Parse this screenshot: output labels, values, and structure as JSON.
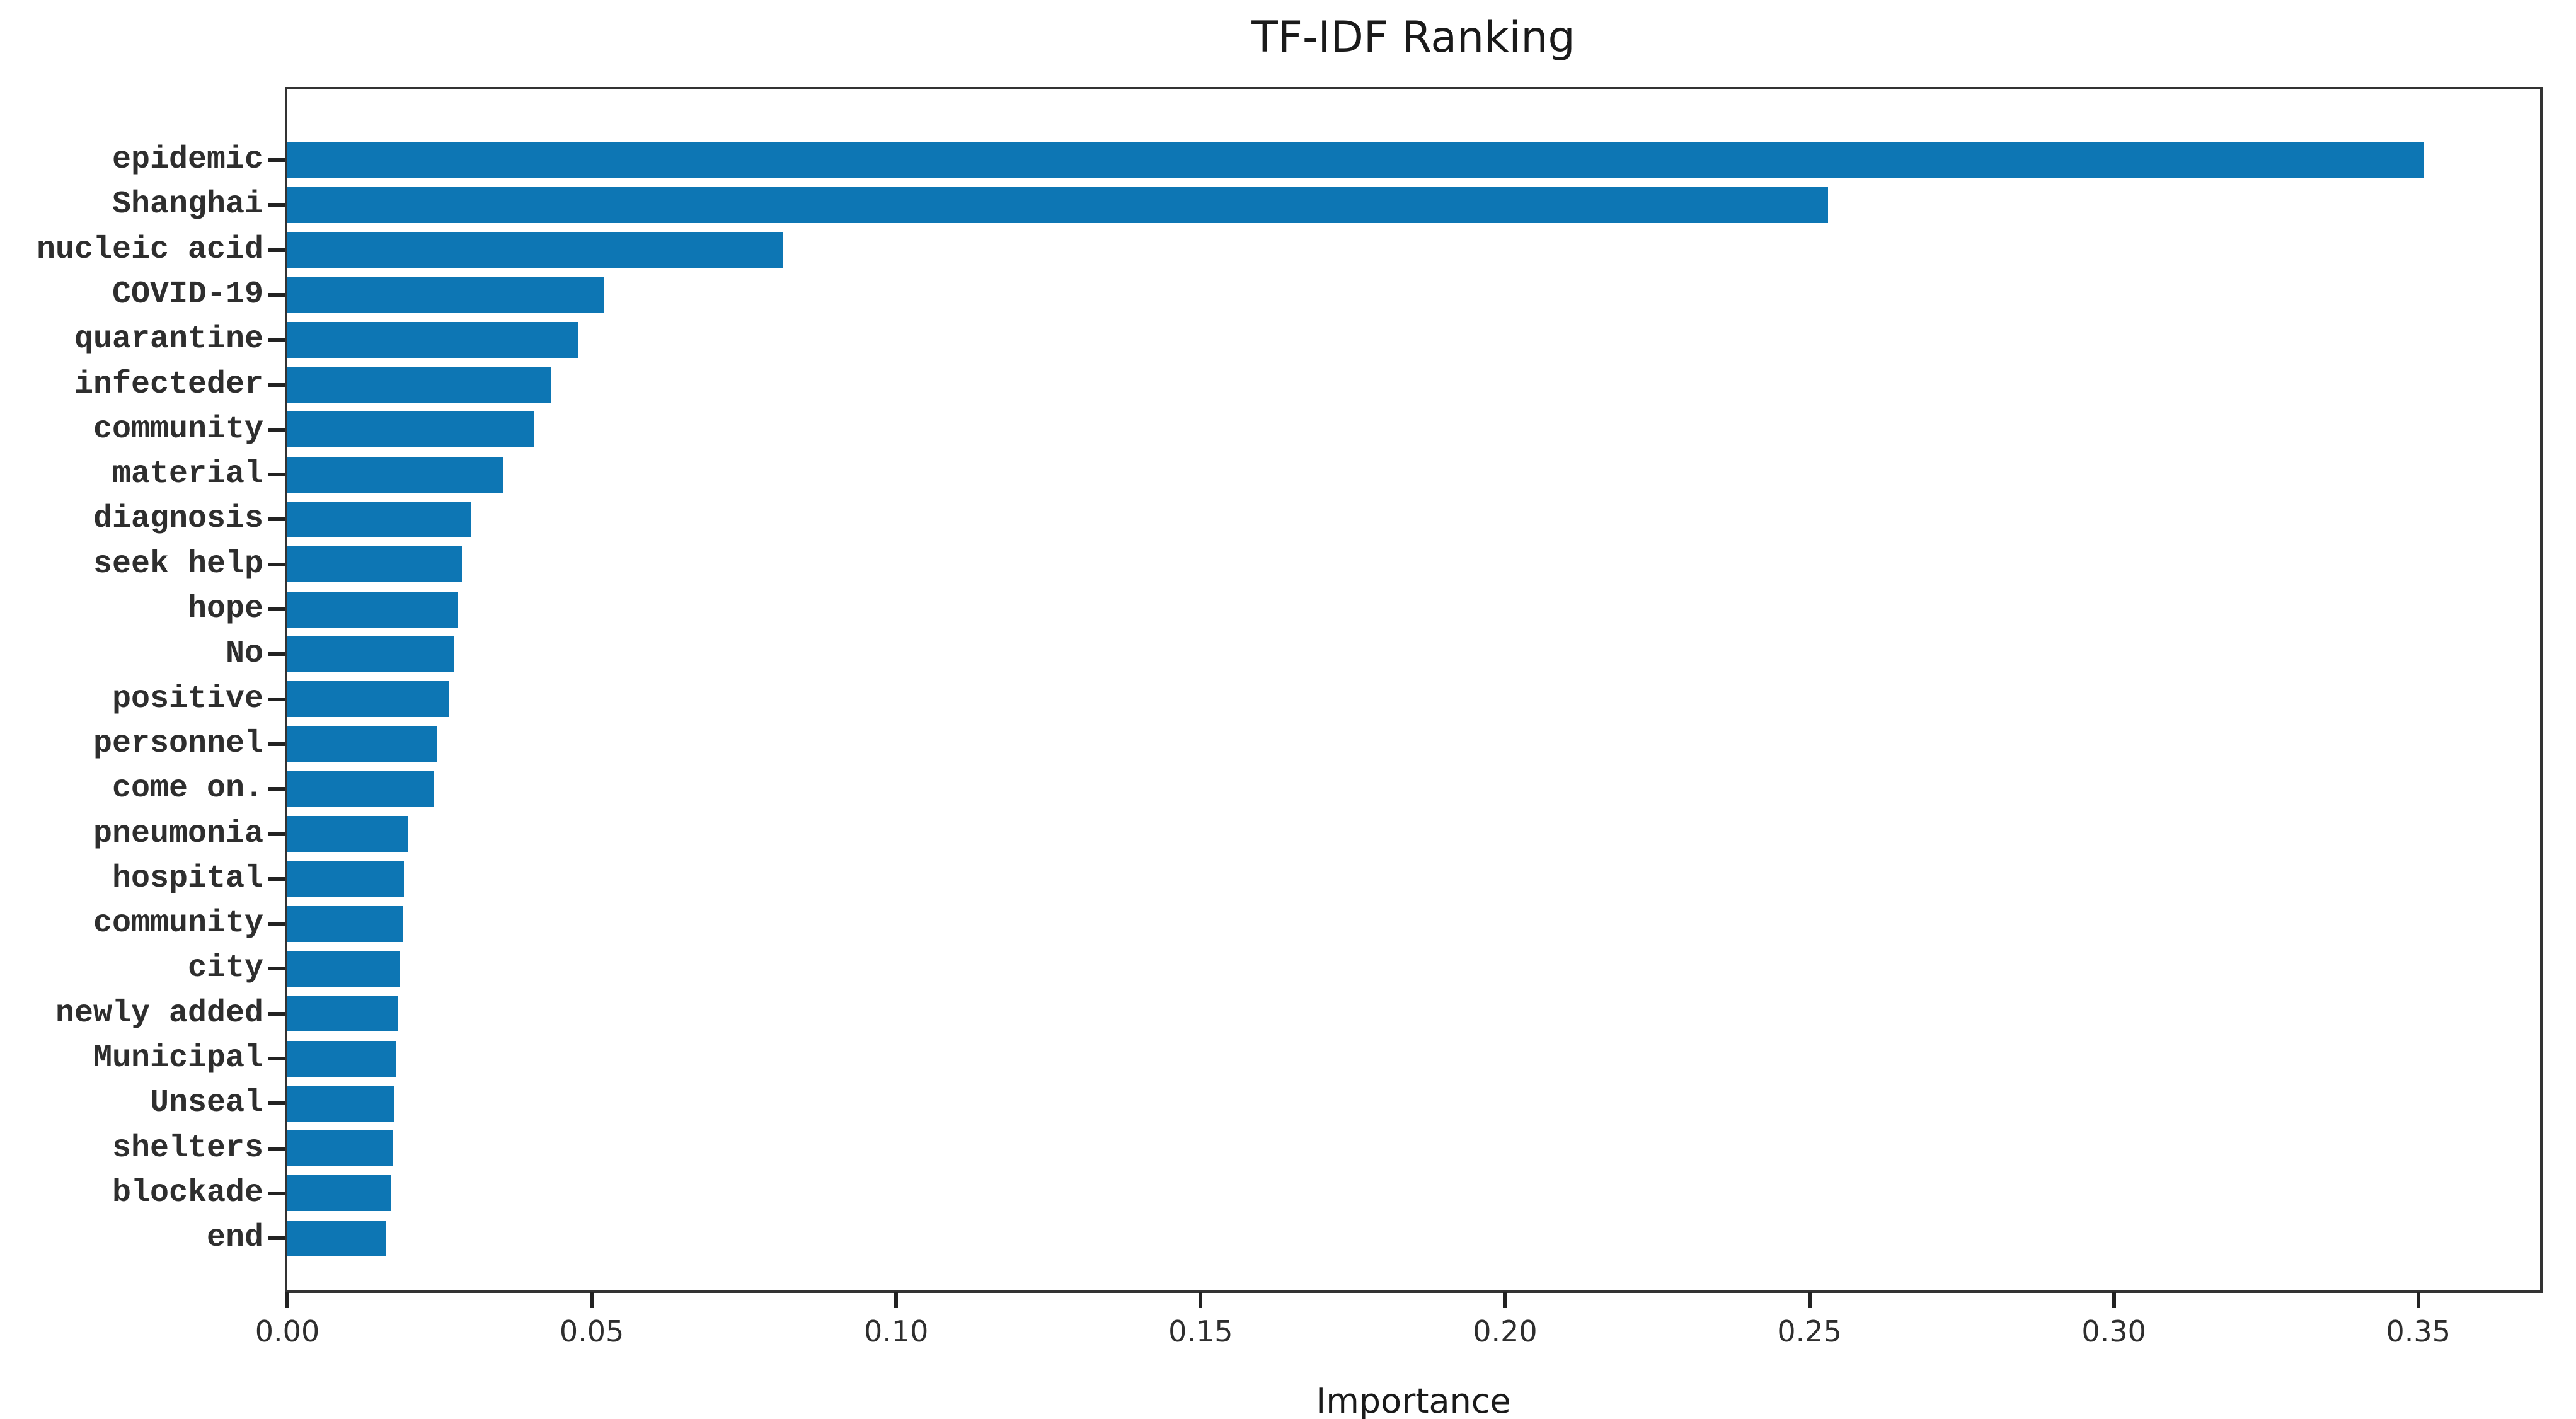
{
  "chart_data": {
    "type": "bar",
    "orientation": "horizontal",
    "title": "TF-IDF Ranking",
    "xlabel": "Importance",
    "ylabel": "",
    "categories": [
      "epidemic",
      "Shanghai",
      "nucleic acid",
      "COVID-19",
      "quarantine",
      "infecteder",
      "community",
      "material",
      "diagnosis",
      "seek help",
      "hope",
      "No",
      "positive",
      "personnel",
      "come on.",
      "pneumonia",
      "hospital",
      "community",
      "city",
      "newly added",
      "Municipal",
      "Unseal",
      "shelters",
      "blockade",
      "end"
    ],
    "values": [
      0.351,
      0.253,
      0.0815,
      0.052,
      0.0478,
      0.0434,
      0.0405,
      0.0354,
      0.0301,
      0.0287,
      0.028,
      0.0274,
      0.0266,
      0.0246,
      0.024,
      0.0198,
      0.0191,
      0.0189,
      0.0184,
      0.0182,
      0.0178,
      0.0176,
      0.0173,
      0.0171,
      0.0163
    ],
    "xlim": [
      0,
      0.37
    ],
    "xticks": [
      0,
      0.05,
      0.1,
      0.15,
      0.2,
      0.25,
      0.3,
      0.35
    ],
    "xtick_labels": [
      "0.00",
      "0.05",
      "0.10",
      "0.15",
      "0.20",
      "0.25",
      "0.30",
      "0.35"
    ],
    "bar_color": "#0d76b4",
    "spine_color": "#333333",
    "text_color": "#2e2e2e",
    "grid": false,
    "legend": null
  }
}
